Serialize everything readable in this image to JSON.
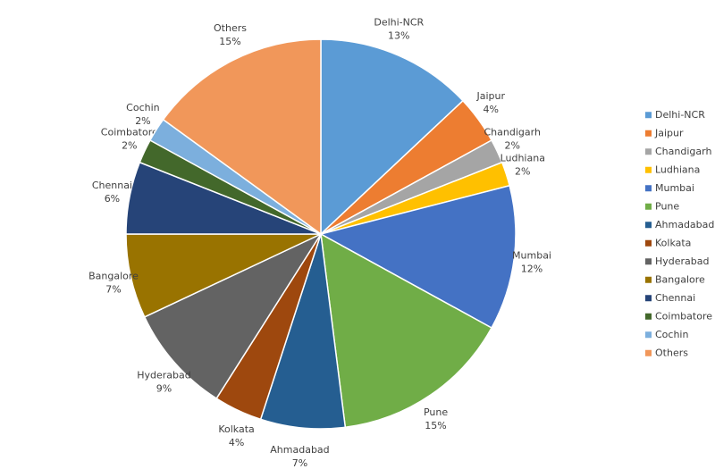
{
  "chart_data": {
    "type": "pie",
    "categories": [
      "Delhi-NCR",
      "Jaipur",
      "Chandigarh",
      "Ludhiana",
      "Mumbai",
      "Pune",
      "Ahmadabad",
      "Kolkata",
      "Hyderabad",
      "Bangalore",
      "Chennai",
      "Coimbatore",
      "Cochin",
      "Others"
    ],
    "values": [
      13,
      4,
      2,
      2,
      12,
      15,
      7,
      4,
      9,
      7,
      6,
      2,
      2,
      15
    ],
    "value_labels": [
      "13%",
      "4%",
      "2%",
      "2%",
      "12%",
      "15%",
      "7%",
      "4%",
      "9%",
      "7%",
      "6%",
      "2%",
      "2%",
      "15%"
    ],
    "colors": [
      "#5b9bd5",
      "#ed7d31",
      "#a5a5a5",
      "#ffc000",
      "#4472c4",
      "#70ad47",
      "#255e91",
      "#9e480e",
      "#636363",
      "#997300",
      "#264478",
      "#43682b",
      "#7cafdd",
      "#f1975a"
    ],
    "legend": "right"
  }
}
